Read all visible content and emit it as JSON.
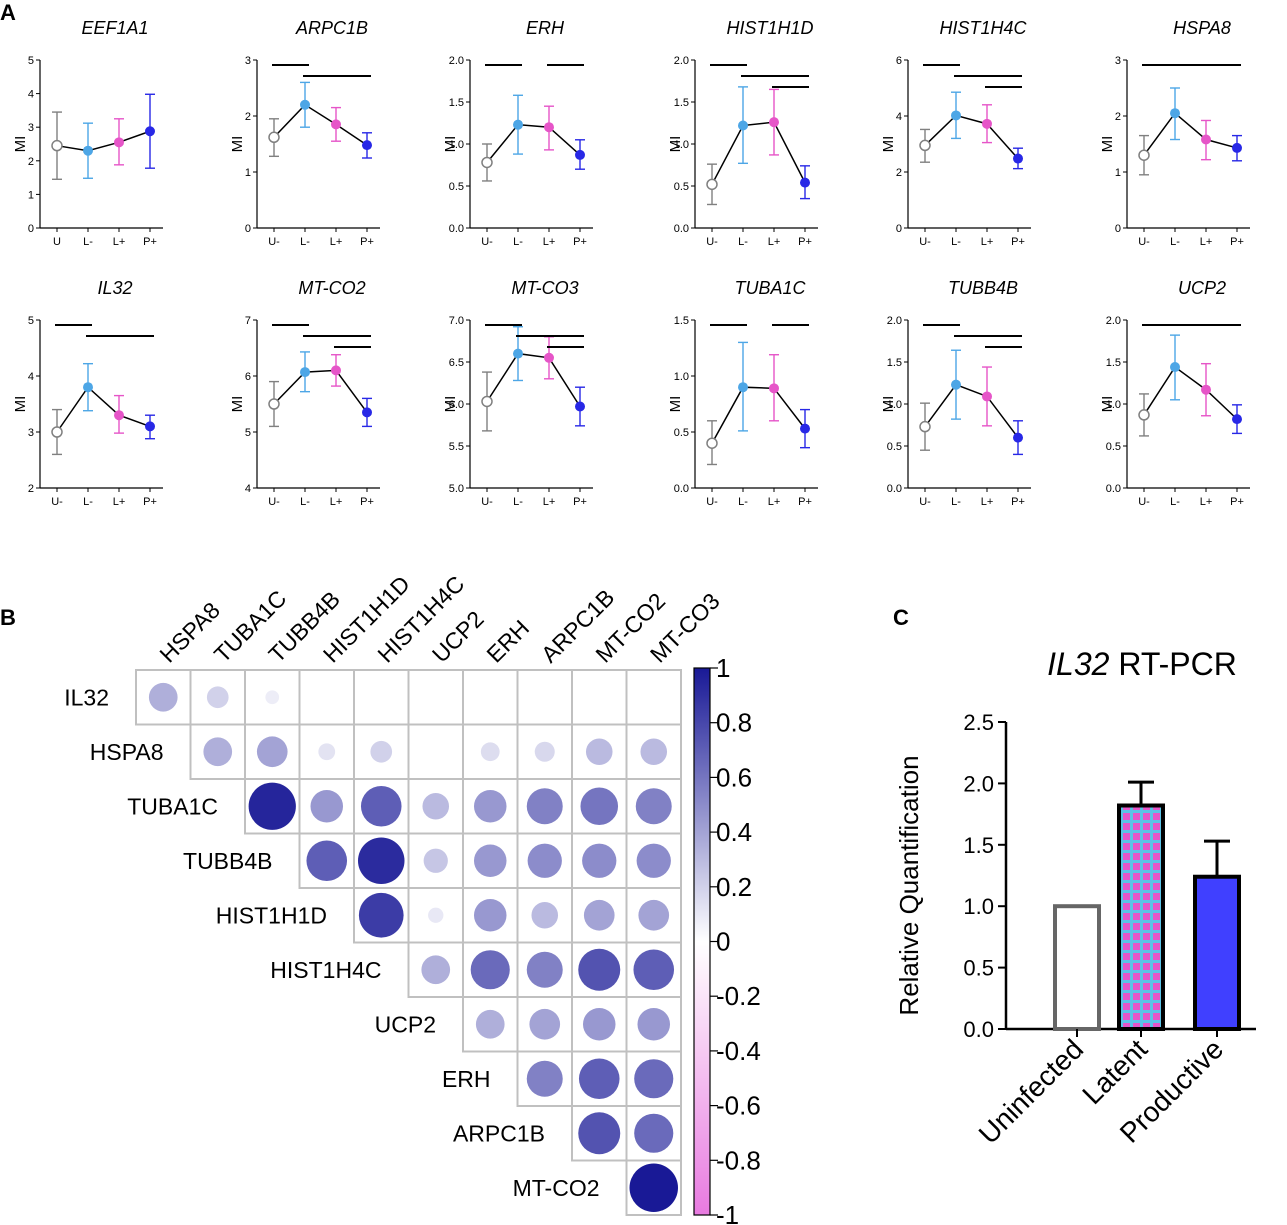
{
  "panels": {
    "A": "A",
    "B": "B",
    "C": "C"
  },
  "colors": {
    "uninfected": "#808080",
    "latent_minus": "#4da6e6",
    "latent_plus": "#e655c8",
    "productive": "#2828e6",
    "line": "#000000",
    "corr_pos": "#191996",
    "corr_neg": "#e87ae0",
    "bar_productive": "#4040ff",
    "bar_latent": "#e655c8",
    "bar_latent_grid": "#5bc2e6"
  },
  "chart_data": [
    {
      "type": "line",
      "id": "EEF1A1",
      "title": "EEF1A1",
      "ylabel": "MI",
      "categories": [
        "U",
        "L-",
        "L+",
        "P+"
      ],
      "ylim": [
        0,
        5
      ],
      "yticks": [
        "0",
        "1",
        "2",
        "3",
        "4",
        "5"
      ],
      "values": [
        2.45,
        2.3,
        2.55,
        2.88
      ],
      "err_low": [
        1.45,
        1.48,
        1.88,
        1.78
      ],
      "err_high": [
        3.45,
        3.12,
        3.25,
        3.98
      ],
      "sig": []
    },
    {
      "type": "line",
      "id": "ARPC1B",
      "title": "ARPC1B",
      "ylabel": "MI",
      "categories": [
        "U-",
        "L-",
        "L+",
        "P+"
      ],
      "ylim": [
        0,
        3
      ],
      "yticks": [
        "0",
        "1",
        "2",
        "3"
      ],
      "values": [
        1.62,
        2.2,
        1.85,
        1.48
      ],
      "err_low": [
        1.28,
        1.8,
        1.55,
        1.25
      ],
      "err_high": [
        1.95,
        2.6,
        2.15,
        1.7
      ],
      "sig": [
        [
          0,
          1,
          0
        ],
        [
          1,
          3,
          1
        ]
      ]
    },
    {
      "type": "line",
      "id": "ERH",
      "title": "ERH",
      "ylabel": "MI",
      "categories": [
        "U-",
        "L-",
        "L+",
        "P+"
      ],
      "ylim": [
        0,
        2
      ],
      "yticks": [
        "0.0",
        "0.5",
        "1.0",
        "1.5",
        "2.0"
      ],
      "values": [
        0.78,
        1.23,
        1.2,
        0.87
      ],
      "err_low": [
        0.56,
        0.88,
        0.93,
        0.7
      ],
      "err_high": [
        1.0,
        1.58,
        1.45,
        1.05
      ],
      "sig": [
        [
          0,
          1,
          0
        ],
        [
          2,
          3,
          0
        ]
      ]
    },
    {
      "type": "line",
      "id": "HIST1H1D",
      "title": "HIST1H1D",
      "ylabel": "MI",
      "categories": [
        "U-",
        "L-",
        "L+",
        "P+"
      ],
      "ylim": [
        0,
        2
      ],
      "yticks": [
        "0.0",
        "0.5",
        "1.0",
        "1.5",
        "2.0"
      ],
      "values": [
        0.52,
        1.22,
        1.26,
        0.54
      ],
      "err_low": [
        0.28,
        0.77,
        0.87,
        0.35
      ],
      "err_high": [
        0.76,
        1.68,
        1.65,
        0.74
      ],
      "sig": [
        [
          0,
          1,
          0
        ],
        [
          1,
          3,
          1
        ],
        [
          2,
          3,
          2
        ]
      ]
    },
    {
      "type": "line",
      "id": "HIST1H4C",
      "title": "HIST1H4C",
      "ylabel": "MI",
      "categories": [
        "U-",
        "L-",
        "L+",
        "P+"
      ],
      "ylim": [
        0,
        6
      ],
      "yticks": [
        "0",
        "2",
        "4",
        "6"
      ],
      "values": [
        2.95,
        4.02,
        3.72,
        2.48
      ],
      "err_low": [
        2.35,
        3.2,
        3.05,
        2.12
      ],
      "err_high": [
        3.52,
        4.85,
        4.4,
        2.85
      ],
      "sig": [
        [
          0,
          1,
          0
        ],
        [
          1,
          3,
          1
        ],
        [
          2,
          3,
          2
        ]
      ]
    },
    {
      "type": "line",
      "id": "HSPA8",
      "title": "HSPA8",
      "ylabel": "MI",
      "categories": [
        "U-",
        "L-",
        "L+",
        "P+"
      ],
      "ylim": [
        0,
        3
      ],
      "yticks": [
        "0",
        "1",
        "2",
        "3"
      ],
      "values": [
        1.3,
        2.05,
        1.58,
        1.43
      ],
      "err_low": [
        0.95,
        1.58,
        1.22,
        1.2
      ],
      "err_high": [
        1.65,
        2.5,
        1.92,
        1.65
      ],
      "sig": [
        [
          0,
          1,
          0
        ],
        [
          1,
          3,
          0
        ]
      ]
    },
    {
      "type": "line",
      "id": "IL32",
      "title": "IL32",
      "ylabel": "MI",
      "categories": [
        "U-",
        "L-",
        "L+",
        "P+"
      ],
      "ylim": [
        2,
        5
      ],
      "yticks": [
        "2",
        "3",
        "4",
        "5"
      ],
      "values": [
        3.0,
        3.8,
        3.3,
        3.1
      ],
      "err_low": [
        2.6,
        3.38,
        2.98,
        2.88
      ],
      "err_high": [
        3.4,
        4.22,
        3.65,
        3.3
      ],
      "sig": [
        [
          0,
          1,
          0
        ],
        [
          1,
          3,
          1
        ]
      ]
    },
    {
      "type": "line",
      "id": "MT-CO2",
      "title": "MT-CO2",
      "ylabel": "MI",
      "categories": [
        "U-",
        "L-",
        "L+",
        "P+"
      ],
      "ylim": [
        4,
        7
      ],
      "yticks": [
        "4",
        "5",
        "6",
        "7"
      ],
      "values": [
        5.5,
        6.07,
        6.1,
        5.35
      ],
      "err_low": [
        5.1,
        5.72,
        5.82,
        5.1
      ],
      "err_high": [
        5.9,
        6.43,
        6.38,
        5.6
      ],
      "sig": [
        [
          0,
          1,
          0
        ],
        [
          1,
          3,
          1
        ],
        [
          2,
          3,
          2
        ]
      ]
    },
    {
      "type": "line",
      "id": "MT-CO3",
      "title": "MT-CO3",
      "ylabel": "MI",
      "categories": [
        "U-",
        "L-",
        "L+",
        "P+"
      ],
      "ylim": [
        5,
        7
      ],
      "yticks": [
        "5.0",
        "5.5",
        "6.0",
        "6.5",
        "7.0"
      ],
      "values": [
        6.03,
        6.6,
        6.55,
        5.97
      ],
      "err_low": [
        5.68,
        6.28,
        6.3,
        5.74
      ],
      "err_high": [
        6.38,
        6.92,
        6.8,
        6.2
      ],
      "sig": [
        [
          0,
          1,
          0
        ],
        [
          1,
          3,
          1
        ],
        [
          2,
          3,
          2
        ]
      ]
    },
    {
      "type": "line",
      "id": "TUBA1C",
      "title": "TUBA1C",
      "ylabel": "MI",
      "categories": [
        "U-",
        "L-",
        "L+",
        "P+"
      ],
      "ylim": [
        0,
        1.5
      ],
      "yticks": [
        "0.0",
        "0.5",
        "1.0",
        "1.5"
      ],
      "values": [
        0.4,
        0.9,
        0.89,
        0.53
      ],
      "err_low": [
        0.21,
        0.51,
        0.6,
        0.36
      ],
      "err_high": [
        0.6,
        1.3,
        1.19,
        0.7
      ],
      "sig": [
        [
          0,
          1,
          0
        ],
        [
          2,
          3,
          0
        ]
      ]
    },
    {
      "type": "line",
      "id": "TUBB4B",
      "title": "TUBB4B",
      "ylabel": "MI",
      "categories": [
        "U-",
        "L-",
        "L+",
        "P+"
      ],
      "ylim": [
        0,
        2
      ],
      "yticks": [
        "0.0",
        "0.5",
        "1.0",
        "1.5",
        "2.0"
      ],
      "values": [
        0.73,
        1.23,
        1.09,
        0.6
      ],
      "err_low": [
        0.45,
        0.82,
        0.74,
        0.4
      ],
      "err_high": [
        1.01,
        1.64,
        1.44,
        0.8
      ],
      "sig": [
        [
          0,
          1,
          0
        ],
        [
          1,
          3,
          1
        ],
        [
          2,
          3,
          2
        ]
      ]
    },
    {
      "type": "line",
      "id": "UCP2",
      "title": "UCP2",
      "ylabel": "MI",
      "categories": [
        "U-",
        "L-",
        "L+",
        "P+"
      ],
      "ylim": [
        0,
        2
      ],
      "yticks": [
        "0.0",
        "0.5",
        "1.0",
        "1.5",
        "2.0"
      ],
      "values": [
        0.87,
        1.44,
        1.17,
        0.82
      ],
      "err_low": [
        0.62,
        1.05,
        0.86,
        0.65
      ],
      "err_high": [
        1.12,
        1.82,
        1.48,
        0.99
      ],
      "sig": [
        [
          0,
          1,
          0
        ],
        [
          1,
          3,
          0
        ]
      ]
    },
    {
      "type": "heatmap",
      "id": "correlation",
      "columns": [
        "HSPA8",
        "TUBA1C",
        "TUBB4B",
        "HIST1H1D",
        "HIST1H4C",
        "UCP2",
        "ERH",
        "ARPC1B",
        "MT-CO2",
        "MT-CO3"
      ],
      "rows": [
        "IL32",
        "HSPA8",
        "TUBA1C",
        "TUBB4B",
        "HIST1H1D",
        "HIST1H4C",
        "UCP2",
        "ERH",
        "ARPC1B",
        "MT-CO2"
      ],
      "values": [
        [
          0.35,
          0.2,
          0.08,
          null,
          null,
          null,
          null,
          null,
          null,
          null
        ],
        [
          null,
          0.35,
          0.4,
          0.12,
          0.2,
          null,
          0.15,
          0.17,
          0.3,
          0.3
        ],
        [
          null,
          null,
          0.95,
          0.45,
          0.7,
          0.3,
          0.45,
          0.55,
          0.6,
          0.55
        ],
        [
          null,
          null,
          null,
          0.7,
          0.92,
          0.25,
          0.45,
          0.5,
          0.5,
          0.5
        ],
        [
          null,
          null,
          null,
          null,
          0.85,
          0.1,
          0.45,
          0.3,
          0.4,
          0.4
        ],
        [
          null,
          null,
          null,
          null,
          null,
          0.35,
          0.65,
          0.55,
          0.75,
          0.7
        ],
        [
          null,
          null,
          null,
          null,
          null,
          null,
          0.35,
          0.4,
          0.45,
          0.45
        ],
        [
          null,
          null,
          null,
          null,
          null,
          null,
          null,
          0.55,
          0.7,
          0.65
        ],
        [
          null,
          null,
          null,
          null,
          null,
          null,
          null,
          null,
          0.75,
          0.65
        ],
        [
          null,
          null,
          null,
          null,
          null,
          null,
          null,
          null,
          null,
          1.0
        ]
      ],
      "colorbar": {
        "range": [
          -1,
          1
        ],
        "ticks": [
          "1",
          "0.8",
          "0.6",
          "0.4",
          "0.2",
          "0",
          "-0.2",
          "-0.4",
          "-0.6",
          "-0.8",
          "-1"
        ]
      }
    },
    {
      "type": "bar",
      "id": "IL32-RT-PCR",
      "title_italic": "IL32",
      "title_rest": " RT-PCR",
      "ylabel": "Relative Quantification",
      "categories": [
        "Uninfected",
        "Latent",
        "Productive"
      ],
      "values": [
        1.0,
        1.82,
        1.24
      ],
      "err_high": [
        null,
        2.01,
        1.53
      ],
      "ylim": [
        0,
        2.5
      ],
      "yticks": [
        "0.0",
        "0.5",
        "1.0",
        "1.5",
        "2.0",
        "2.5"
      ]
    }
  ]
}
